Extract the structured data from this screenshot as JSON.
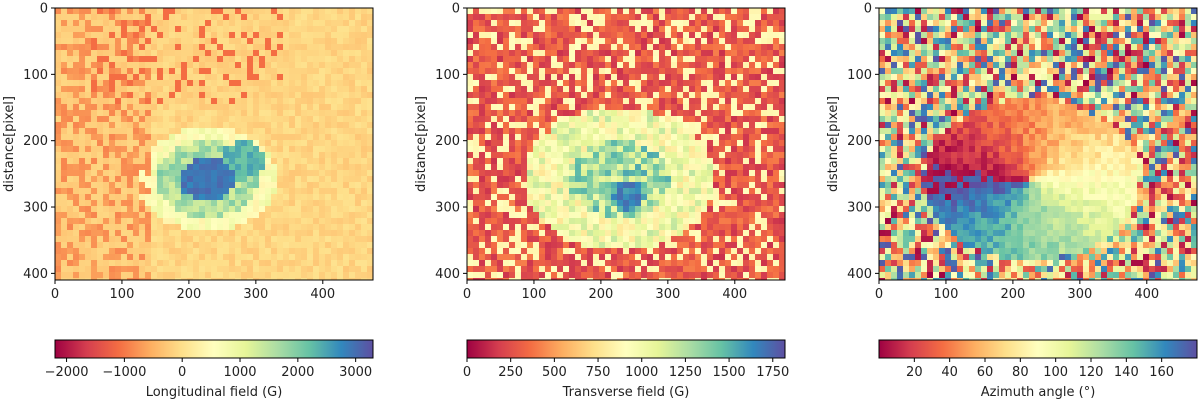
{
  "chart_data": [
    {
      "type": "heatmap",
      "ylabel": "distance[pixel]",
      "xlim": [
        0,
        475
      ],
      "ylim": [
        410,
        0
      ],
      "xticks": [
        0,
        100,
        200,
        300,
        400
      ],
      "yticks": [
        0,
        100,
        200,
        300,
        400
      ],
      "colorbar": {
        "label": "Longitudinal field (G)",
        "range": [
          -2200,
          3300
        ],
        "ticks": [
          "−2000",
          "−1000",
          "0",
          "1000",
          "2000",
          "3000"
        ],
        "tick_values": [
          -2000,
          -1000,
          0,
          1000,
          2000,
          3000
        ]
      },
      "colormap": "Spectral"
    },
    {
      "type": "heatmap",
      "ylabel": "distance[pixel]",
      "xlim": [
        0,
        475
      ],
      "ylim": [
        410,
        0
      ],
      "xticks": [
        0,
        100,
        200,
        300,
        400
      ],
      "yticks": [
        0,
        100,
        200,
        300,
        400
      ],
      "colorbar": {
        "label": "Transverse field (G)",
        "range": [
          0,
          1820
        ],
        "ticks": [
          "0",
          "250",
          "500",
          "750",
          "1000",
          "1250",
          "1500",
          "1750"
        ],
        "tick_values": [
          0,
          250,
          500,
          750,
          1000,
          1250,
          1500,
          1750
        ]
      },
      "colormap": "Spectral"
    },
    {
      "type": "heatmap",
      "ylabel": "distance[pixel]",
      "xlim": [
        0,
        475
      ],
      "ylim": [
        410,
        0
      ],
      "xticks": [
        0,
        100,
        200,
        300,
        400
      ],
      "yticks": [
        0,
        100,
        200,
        300,
        400
      ],
      "colorbar": {
        "label": "Azimuth angle (°)",
        "range": [
          0,
          180
        ],
        "ticks": [
          "20",
          "40",
          "60",
          "80",
          "100",
          "120",
          "140",
          "160"
        ],
        "tick_values": [
          20,
          40,
          60,
          80,
          100,
          120,
          140,
          160
        ]
      },
      "colormap": "Spectral"
    }
  ],
  "colors": {
    "spectral_stops": [
      "#9e0142",
      "#d53e4f",
      "#f46d43",
      "#fdae61",
      "#fee08b",
      "#ffffbf",
      "#e6f598",
      "#abdda4",
      "#66c2a5",
      "#3288bd",
      "#5e4fa2"
    ]
  }
}
